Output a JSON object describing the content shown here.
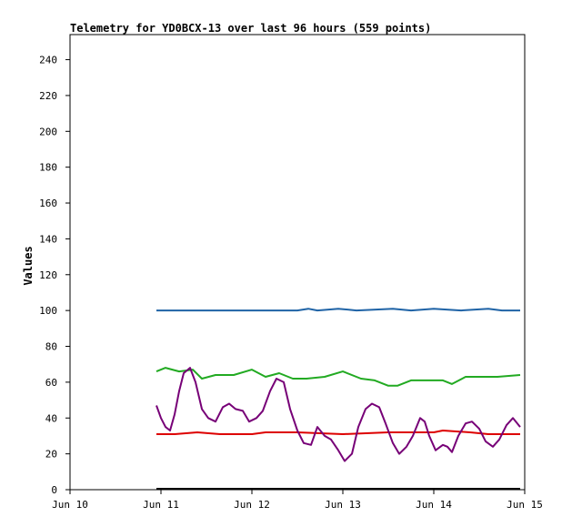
{
  "chart_data": {
    "type": "line",
    "title": "Telemetry for YD0BCX-13 over last 96 hours (559 points)",
    "ylabel": "Values",
    "xlabel": "",
    "ylim": [
      0,
      254
    ],
    "xlim": [
      0,
      5
    ],
    "yticks": [
      0,
      20,
      40,
      60,
      80,
      100,
      120,
      140,
      160,
      180,
      200,
      220,
      240
    ],
    "xticks": [
      {
        "value": 0,
        "label": "Jun 10"
      },
      {
        "value": 1,
        "label": "Jun 11"
      },
      {
        "value": 2,
        "label": "Jun 12"
      },
      {
        "value": 3,
        "label": "Jun 13"
      },
      {
        "value": 4,
        "label": "Jun 14"
      },
      {
        "value": 5,
        "label": "Jun 15"
      }
    ],
    "grid": false,
    "legend": "none",
    "series": [
      {
        "color": "#1f63a6",
        "x": [
          0.95,
          1.5,
          2.0,
          2.5,
          2.62,
          2.72,
          2.95,
          3.15,
          3.55,
          3.75,
          4.0,
          4.3,
          4.6,
          4.75,
          4.95
        ],
        "y": [
          100,
          100,
          100,
          100,
          101,
          100,
          101,
          100,
          101,
          100,
          101,
          100,
          101,
          100,
          100
        ]
      },
      {
        "color": "#22aa22",
        "x": [
          0.95,
          1.05,
          1.2,
          1.35,
          1.45,
          1.6,
          1.8,
          2.0,
          2.15,
          2.3,
          2.45,
          2.6,
          2.8,
          3.0,
          3.2,
          3.35,
          3.5,
          3.6,
          3.75,
          3.95,
          4.1,
          4.2,
          4.35,
          4.5,
          4.7,
          4.95
        ],
        "y": [
          66,
          68,
          66,
          67,
          62,
          64,
          64,
          67,
          63,
          65,
          62,
          62,
          63,
          66,
          62,
          61,
          58,
          58,
          61,
          61,
          61,
          59,
          63,
          63,
          63,
          64
        ]
      },
      {
        "color": "#dd0000",
        "x": [
          0.95,
          1.15,
          1.4,
          1.65,
          2.0,
          2.15,
          2.5,
          3.0,
          3.5,
          4.0,
          4.1,
          4.4,
          4.6,
          4.95
        ],
        "y": [
          31,
          31,
          32,
          31,
          31,
          32,
          32,
          31,
          32,
          32,
          33,
          32,
          31,
          31
        ]
      },
      {
        "color": "#770077",
        "x": [
          0.95,
          1.0,
          1.05,
          1.1,
          1.15,
          1.2,
          1.25,
          1.32,
          1.38,
          1.45,
          1.52,
          1.6,
          1.68,
          1.75,
          1.82,
          1.9,
          1.97,
          2.05,
          2.12,
          2.2,
          2.27,
          2.35,
          2.42,
          2.5,
          2.57,
          2.65,
          2.72,
          2.8,
          2.87,
          2.95,
          3.02,
          3.1,
          3.17,
          3.25,
          3.32,
          3.4,
          3.47,
          3.55,
          3.62,
          3.7,
          3.77,
          3.85,
          3.9,
          3.95,
          4.02,
          4.1,
          4.15,
          4.2,
          4.27,
          4.35,
          4.42,
          4.5,
          4.57,
          4.65,
          4.72,
          4.8,
          4.87,
          4.95
        ],
        "y": [
          47,
          40,
          35,
          33,
          42,
          55,
          65,
          68,
          60,
          45,
          40,
          38,
          46,
          48,
          45,
          44,
          38,
          40,
          44,
          55,
          62,
          60,
          45,
          33,
          26,
          25,
          35,
          30,
          28,
          22,
          16,
          20,
          35,
          45,
          48,
          46,
          37,
          26,
          20,
          24,
          30,
          40,
          38,
          30,
          22,
          25,
          24,
          21,
          30,
          37,
          38,
          34,
          27,
          24,
          28,
          36,
          40,
          35
        ]
      }
    ]
  }
}
